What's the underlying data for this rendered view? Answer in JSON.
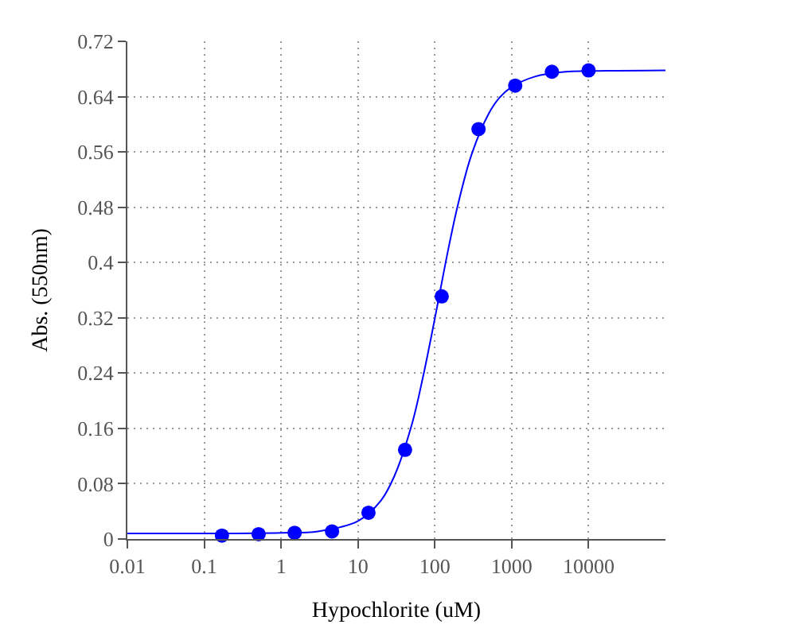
{
  "chart_data": {
    "type": "scatter",
    "xlabel": "Hypochlorite (uM)",
    "ylabel": "Abs. (550nm)",
    "log": "x",
    "xlim": [
      0.01,
      100000
    ],
    "xticks": [
      0.01,
      0.1,
      1,
      10,
      100,
      1000,
      10000
    ],
    "ylim": [
      0,
      0.72
    ],
    "yticks": [
      0,
      0.08,
      0.16,
      0.24,
      0.32,
      0.4,
      0.48,
      0.56,
      0.64,
      0.72
    ],
    "grid": true,
    "series": [
      {
        "color": "#0000ff",
        "marker": "circle",
        "x": [
          0.17,
          0.51,
          1.5,
          4.6,
          13.7,
          41,
          123,
          370,
          1111,
          3333,
          10000
        ],
        "values": [
          0.005,
          0.007,
          0.009,
          0.011,
          0.038,
          0.129,
          0.351,
          0.593,
          0.656,
          0.676,
          0.678
        ]
      },
      {
        "type": "line",
        "color": "#0000ff",
        "marker": "none",
        "line_style": "solid",
        "x": [
          0.01,
          0.1,
          1,
          3,
          10,
          20,
          30,
          50,
          70,
          100,
          150,
          200,
          300,
          500,
          700,
          1000,
          2000,
          5000,
          10000,
          100000
        ],
        "values": [
          0.008,
          0.008,
          0.009,
          0.011,
          0.026,
          0.056,
          0.092,
          0.165,
          0.234,
          0.319,
          0.42,
          0.484,
          0.556,
          0.615,
          0.639,
          0.654,
          0.669,
          0.676,
          0.677,
          0.678
        ]
      }
    ]
  }
}
